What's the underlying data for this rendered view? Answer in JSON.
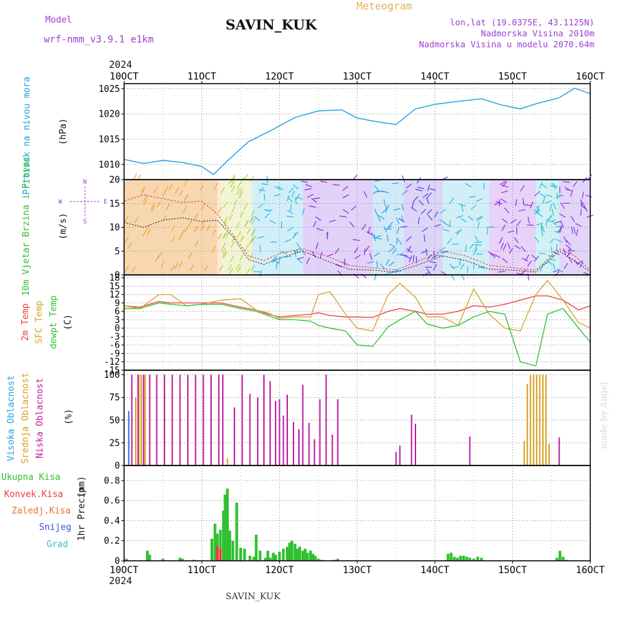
{
  "header": {
    "model_label": "Model",
    "model_name": "wrf-nmm_v3.9.1  e1km",
    "station": "SAVIN_KUK",
    "meteogram": "Meteogram",
    "lonlat": "lon,lat (19.0375E, 43.1125N)",
    "altitude": "Nadmorska Visina 2010m",
    "model_altitude": "Nadmorska Visina u modelu 2070.64m",
    "watermark": "made by Angel",
    "footer_station": "SAVIN_KUK",
    "year_top": "2024",
    "year_bottom": "2024"
  },
  "colors": {
    "pressure": "#22a0e0",
    "temp2m": "#e84040",
    "sfc_temp": "#d8a030",
    "dewpt": "#30c030",
    "cloud_high": "#3070e0",
    "cloud_mid": "#d8a020",
    "cloud_low": "#c020a0",
    "precip_total": "#30c030",
    "precip_conv": "#e84040",
    "ylabel_pressure": "#22a0e0",
    "ylabel_wind": "#30c030",
    "legend_purple": "#a040d0",
    "meteogram_title": "#e0b060",
    "grid": "#888888"
  },
  "chart_data": [
    {
      "type": "line",
      "panel": "pressure",
      "title": "",
      "ylabel": "Pritisak na nivou mora",
      "unit": "(hPa)",
      "ylim": [
        1007,
        1026
      ],
      "yticks": [
        1010,
        1015,
        1020,
        1025
      ],
      "xticks": [
        "10OCT",
        "11OCT",
        "12OCT",
        "13OCT",
        "14OCT",
        "15OCT",
        "16OCT"
      ],
      "grid": true,
      "series": [
        {
          "name": "",
          "x": [
            0,
            0.25,
            0.5,
            0.75,
            1.0,
            1.15,
            1.35,
            1.6,
            1.9,
            2.2,
            2.5,
            2.8,
            3.0,
            3.2,
            3.5,
            3.75,
            4.0,
            4.3,
            4.6,
            4.85,
            5.1,
            5.3,
            5.6,
            5.8,
            6.0
          ],
          "values": [
            1011,
            1010.2,
            1010.8,
            1010.4,
            1009.6,
            1008.0,
            1011.0,
            1014.5,
            1016.8,
            1019.3,
            1020.6,
            1020.8,
            1019.2,
            1018.6,
            1017.9,
            1021.0,
            1021.9,
            1022.5,
            1023.0,
            1021.8,
            1021.0,
            1022.0,
            1023.2,
            1025.1,
            1024.0
          ]
        }
      ]
    },
    {
      "type": "line",
      "panel": "wind",
      "title": "",
      "ylabel": "10m Vjetar Brzina i Pravac",
      "unit": "(m/s)",
      "ylim": [
        0,
        20
      ],
      "yticks": [
        0,
        5,
        10,
        15,
        20
      ],
      "compass": [
        "N",
        "W",
        "E",
        "S"
      ],
      "grid": true,
      "series": [
        {
          "name": "",
          "x": [
            0,
            0.25,
            0.5,
            0.75,
            1.0,
            1.2,
            1.4,
            1.6,
            1.8,
            2.0,
            2.3,
            2.6,
            2.9,
            3.2,
            3.5,
            3.8,
            4.1,
            4.4,
            4.7,
            5.0,
            5.3,
            5.6,
            5.8,
            6.0
          ],
          "values": [
            15.5,
            16.8,
            16.0,
            15.2,
            15.5,
            12.8,
            8.5,
            4.0,
            3.0,
            4.5,
            5.5,
            4.0,
            2.0,
            1.5,
            1.0,
            3.0,
            5.0,
            4.0,
            2.0,
            1.5,
            1.0,
            5.5,
            4.0,
            1.0
          ]
        },
        {
          "name": "",
          "x": [
            0,
            0.25,
            0.5,
            0.75,
            1.0,
            1.2,
            1.4,
            1.6,
            1.8,
            2.0,
            2.3,
            2.6,
            2.9,
            3.2,
            3.5,
            3.8,
            4.1,
            4.4,
            4.7,
            5.0,
            5.3,
            5.6,
            5.8,
            6.0
          ],
          "values": [
            11.0,
            10.0,
            11.5,
            12.0,
            11.2,
            11.5,
            8.0,
            3.2,
            2.2,
            3.5,
            5.0,
            3.0,
            1.2,
            1.0,
            0.6,
            2.2,
            4.0,
            3.0,
            1.2,
            1.0,
            0.6,
            5.0,
            3.0,
            0.6
          ]
        }
      ]
    },
    {
      "type": "line",
      "panel": "temperature",
      "title": "",
      "ylabel": "2m Temp",
      "ylabel2": "SFC Temp",
      "ylabel3": "dewpt Temp",
      "unit": "(C)",
      "ylim": [
        -15,
        19
      ],
      "yticks": [
        -15,
        -12,
        -9,
        -6,
        -3,
        0,
        3,
        6,
        9,
        12,
        15,
        18
      ],
      "grid": true,
      "x": [
        0,
        0.2,
        0.45,
        0.6,
        0.8,
        1.0,
        1.25,
        1.5,
        1.7,
        1.85,
        2.0,
        2.2,
        2.4,
        2.5,
        2.65,
        2.85,
        3.0,
        3.2,
        3.4,
        3.55,
        3.75,
        3.9,
        4.1,
        4.3,
        4.5,
        4.7,
        4.9,
        5.1,
        5.3,
        5.45,
        5.65,
        5.85,
        6.0
      ],
      "series": [
        {
          "name": "2m Temp",
          "values": [
            8,
            7.5,
            9.5,
            9,
            9,
            9,
            9,
            7.5,
            6.5,
            5,
            4,
            4.5,
            5,
            5.5,
            4.5,
            4,
            4,
            3.8,
            6,
            7,
            6,
            5,
            5,
            6,
            8,
            7.5,
            8.5,
            10,
            11.5,
            11.5,
            10,
            6.5,
            8
          ]
        },
        {
          "name": "SFC Temp",
          "values": [
            8,
            7,
            12,
            12,
            8,
            8.5,
            10,
            10.5,
            6.5,
            5.5,
            3.5,
            4,
            4,
            12,
            13,
            5,
            0,
            -1,
            12,
            16,
            11,
            4,
            4,
            1,
            14,
            5,
            0,
            -1,
            12,
            17,
            10,
            2,
            0
          ]
        },
        {
          "name": "dewpt Temp",
          "values": [
            7,
            7,
            9,
            8.5,
            8,
            8.5,
            8.5,
            7,
            6,
            4.5,
            3,
            3,
            2.5,
            1,
            0,
            -1,
            -6,
            -6.5,
            0.5,
            3,
            6,
            1.5,
            0,
            1,
            4,
            6,
            5,
            -12,
            -13.5,
            5,
            7,
            0,
            -5
          ]
        }
      ]
    },
    {
      "type": "bar",
      "panel": "clouds",
      "title": "",
      "ylabel": "Visoka Oblacnost",
      "ylabel2": "Srednja Oblacnost",
      "ylabel3": "Niska Oblacnost",
      "unit": "(%)",
      "ylim": [
        0,
        105
      ],
      "yticks": [
        0,
        25,
        50,
        75,
        100
      ],
      "grid": true,
      "series": [
        {
          "name": "Visoka Oblacnost",
          "x": [
            0.06
          ],
          "values": [
            60
          ]
        },
        {
          "name": "Srednja Oblacnost",
          "x": [
            0.15,
            0.19,
            0.22,
            0.27,
            1.33,
            5.15,
            5.19,
            5.23,
            5.27,
            5.31,
            5.35,
            5.39,
            5.43,
            5.47
          ],
          "values": [
            75,
            100,
            100,
            100,
            8,
            27,
            90,
            100,
            100,
            100,
            100,
            100,
            100,
            24
          ]
        },
        {
          "name": "Niska Oblacnost",
          "x": [
            0.1,
            0.18,
            0.25,
            0.33,
            0.42,
            0.52,
            0.62,
            0.72,
            0.82,
            0.92,
            1.02,
            1.12,
            1.22,
            1.27,
            1.42,
            1.52,
            1.62,
            1.72,
            1.8,
            1.88,
            1.95,
            2.0,
            2.05,
            2.1,
            2.18,
            2.25,
            2.3,
            2.38,
            2.45,
            2.52,
            2.6,
            2.68,
            2.75,
            3.5,
            3.55,
            3.7,
            3.75,
            4.45,
            5.6
          ],
          "values": [
            100,
            100,
            100,
            100,
            100,
            100,
            100,
            100,
            100,
            100,
            100,
            100,
            100,
            100,
            64,
            100,
            79,
            75,
            100,
            93,
            71,
            73,
            55,
            78,
            48,
            40,
            89,
            47,
            29,
            73,
            100,
            34,
            73,
            15,
            22,
            56,
            46,
            32,
            31
          ]
        }
      ]
    },
    {
      "type": "bar",
      "panel": "precip",
      "title": "",
      "ylabel": "1hr Precip",
      "unit": "(mm)",
      "legend": [
        "Ukupna Kisa",
        "Konvek.Kisa",
        "Zaledj.Kisa",
        "Snijeg",
        "Grad"
      ],
      "ylim": [
        0,
        0.95
      ],
      "yticks": [
        0,
        0.2,
        0.4,
        0.6,
        0.8
      ],
      "xticks": [
        "10OCT",
        "11OCT",
        "12OCT",
        "13OCT",
        "14OCT",
        "15OCT",
        "16OCT"
      ],
      "grid": true,
      "series": [
        {
          "name": "Ukupna Kisa",
          "x": [
            0.03,
            0.3,
            0.33,
            0.5,
            0.72,
            0.75,
            0.9,
            1.13,
            1.17,
            1.2,
            1.24,
            1.28,
            1.3,
            1.33,
            1.36,
            1.4,
            1.45,
            1.5,
            1.55,
            1.62,
            1.67,
            1.7,
            1.75,
            1.82,
            1.85,
            1.88,
            1.92,
            1.95,
            2.0,
            2.05,
            2.1,
            2.13,
            2.16,
            2.2,
            2.23,
            2.26,
            2.3,
            2.33,
            2.36,
            2.4,
            2.43,
            2.46,
            2.5,
            2.55,
            2.7,
            2.75,
            4.17,
            4.21,
            4.25,
            4.29,
            4.33,
            4.37,
            4.41,
            4.45,
            4.5,
            4.55,
            4.6,
            5.57,
            5.61,
            5.65,
            5.69
          ],
          "values": [
            0.02,
            0.1,
            0.06,
            0.02,
            0.03,
            0.02,
            0.01,
            0.22,
            0.37,
            0.27,
            0.31,
            0.5,
            0.66,
            0.72,
            0.3,
            0.2,
            0.58,
            0.13,
            0.12,
            0.05,
            0.04,
            0.26,
            0.1,
            0.03,
            0.1,
            0.03,
            0.08,
            0.06,
            0.09,
            0.12,
            0.14,
            0.18,
            0.2,
            0.17,
            0.12,
            0.14,
            0.1,
            0.12,
            0.08,
            0.1,
            0.07,
            0.05,
            0.02,
            0.01,
            0.01,
            0.02,
            0.07,
            0.08,
            0.04,
            0.03,
            0.05,
            0.05,
            0.04,
            0.03,
            0.02,
            0.04,
            0.03,
            0.03,
            0.1,
            0.04,
            0.01
          ]
        },
        {
          "name": "Konvek.Kisa",
          "x": [
            1.2,
            1.24
          ],
          "values": [
            0.15,
            0.12
          ]
        }
      ]
    }
  ]
}
